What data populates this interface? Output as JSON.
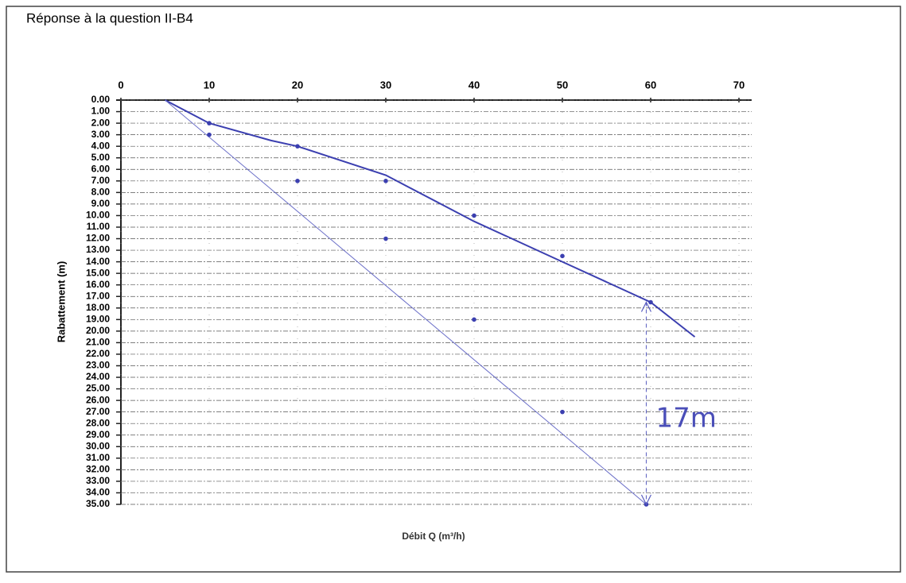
{
  "chart_data": {
    "type": "line",
    "title": "Réponse à la question II-B4",
    "xlabel": "Débit Q (m³/h)",
    "ylabel": "Rabattement (m)",
    "xlim": [
      0,
      70
    ],
    "xticks": [
      0,
      10,
      20,
      30,
      40,
      50,
      60,
      70
    ],
    "ylim": [
      0,
      35
    ],
    "y_inverted": true,
    "x_axis_top": true,
    "grid": true,
    "yticks": [
      {
        "value": 0,
        "label": "0.00"
      },
      {
        "value": 1,
        "label": "1.00"
      },
      {
        "value": 2,
        "label": "2.00"
      },
      {
        "value": 3,
        "label": "3.00"
      },
      {
        "value": 4,
        "label": "4.00"
      },
      {
        "value": 5,
        "label": "5.00"
      },
      {
        "value": 6,
        "label": "6.00"
      },
      {
        "value": 7,
        "label": "7.00"
      },
      {
        "value": 8,
        "label": "8.00"
      },
      {
        "value": 9,
        "label": "9.00"
      },
      {
        "value": 10,
        "label": "10.00"
      },
      {
        "value": 11,
        "label": "11.00"
      },
      {
        "value": 12,
        "label": "12.00"
      },
      {
        "value": 13,
        "label": "13.00"
      },
      {
        "value": 14,
        "label": "14.00"
      },
      {
        "value": 15,
        "label": "15.00"
      },
      {
        "value": 16,
        "label": "16.00"
      },
      {
        "value": 17,
        "label": "17.00"
      },
      {
        "value": 18,
        "label": "18.00"
      },
      {
        "value": 19,
        "label": "19.00"
      },
      {
        "value": 20,
        "label": "20.00"
      },
      {
        "value": 21,
        "label": "21.00"
      },
      {
        "value": 22,
        "label": "22.00"
      },
      {
        "value": 23,
        "label": "23.00"
      },
      {
        "value": 24,
        "label": "24.00"
      },
      {
        "value": 25,
        "label": "25.00"
      },
      {
        "value": 26,
        "label": "26.00"
      },
      {
        "value": 27,
        "label": "27.00"
      },
      {
        "value": 28,
        "label": "28.00"
      },
      {
        "value": 29,
        "label": "29.00"
      },
      {
        "value": 30,
        "label": "30.00"
      },
      {
        "value": 31,
        "label": "31.00"
      },
      {
        "value": 32,
        "label": "32.00"
      },
      {
        "value": 33,
        "label": "33.00"
      },
      {
        "value": 34,
        "label": "34.00"
      },
      {
        "value": 35,
        "label": "35.00"
      }
    ],
    "series": [
      {
        "color": "#3b3fb0",
        "mode": "line",
        "width": 2,
        "x": [
          5,
          10,
          17,
          20,
          30,
          40,
          50,
          60,
          65
        ],
        "values": [
          0,
          2,
          3.5,
          4,
          6.5,
          10.5,
          14,
          17.5,
          20.5
        ]
      },
      {
        "color": "#3b3fb0",
        "mode": "markers",
        "x": [
          10,
          20,
          30,
          40,
          50,
          60
        ],
        "values": [
          2,
          4,
          7,
          10,
          13.5,
          17.5
        ]
      },
      {
        "color": "#6b6fc8",
        "mode": "line",
        "width": 1,
        "x": [
          5,
          59.5
        ],
        "values": [
          0,
          35
        ]
      },
      {
        "color": "#3b3fb0",
        "mode": "markers",
        "x": [
          10,
          20,
          30,
          40,
          50,
          59.5
        ],
        "values": [
          3,
          7,
          12,
          19,
          27,
          35
        ]
      }
    ],
    "annotations": [
      {
        "text": "17m",
        "x": 59.5,
        "y_from": 17.5,
        "y_to": 35
      }
    ]
  }
}
